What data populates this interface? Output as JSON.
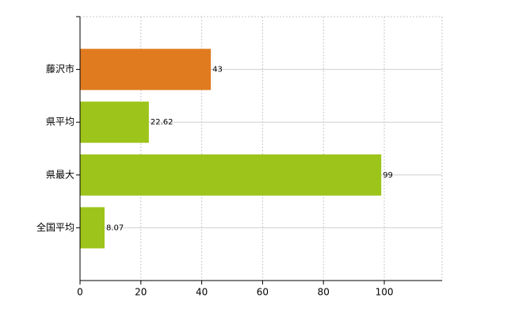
{
  "chart_data": {
    "type": "bar",
    "orientation": "horizontal",
    "categories": [
      "藤沢市",
      "県平均",
      "県最大",
      "全国平均"
    ],
    "values": [
      43,
      22.62,
      99,
      8.07
    ],
    "colors": [
      "#e07b20",
      "#9dc41a",
      "#9dc41a",
      "#9dc41a"
    ],
    "xlim": [
      0,
      119
    ],
    "xticks": [
      0,
      20,
      40,
      60,
      80,
      100
    ],
    "grid": true
  }
}
